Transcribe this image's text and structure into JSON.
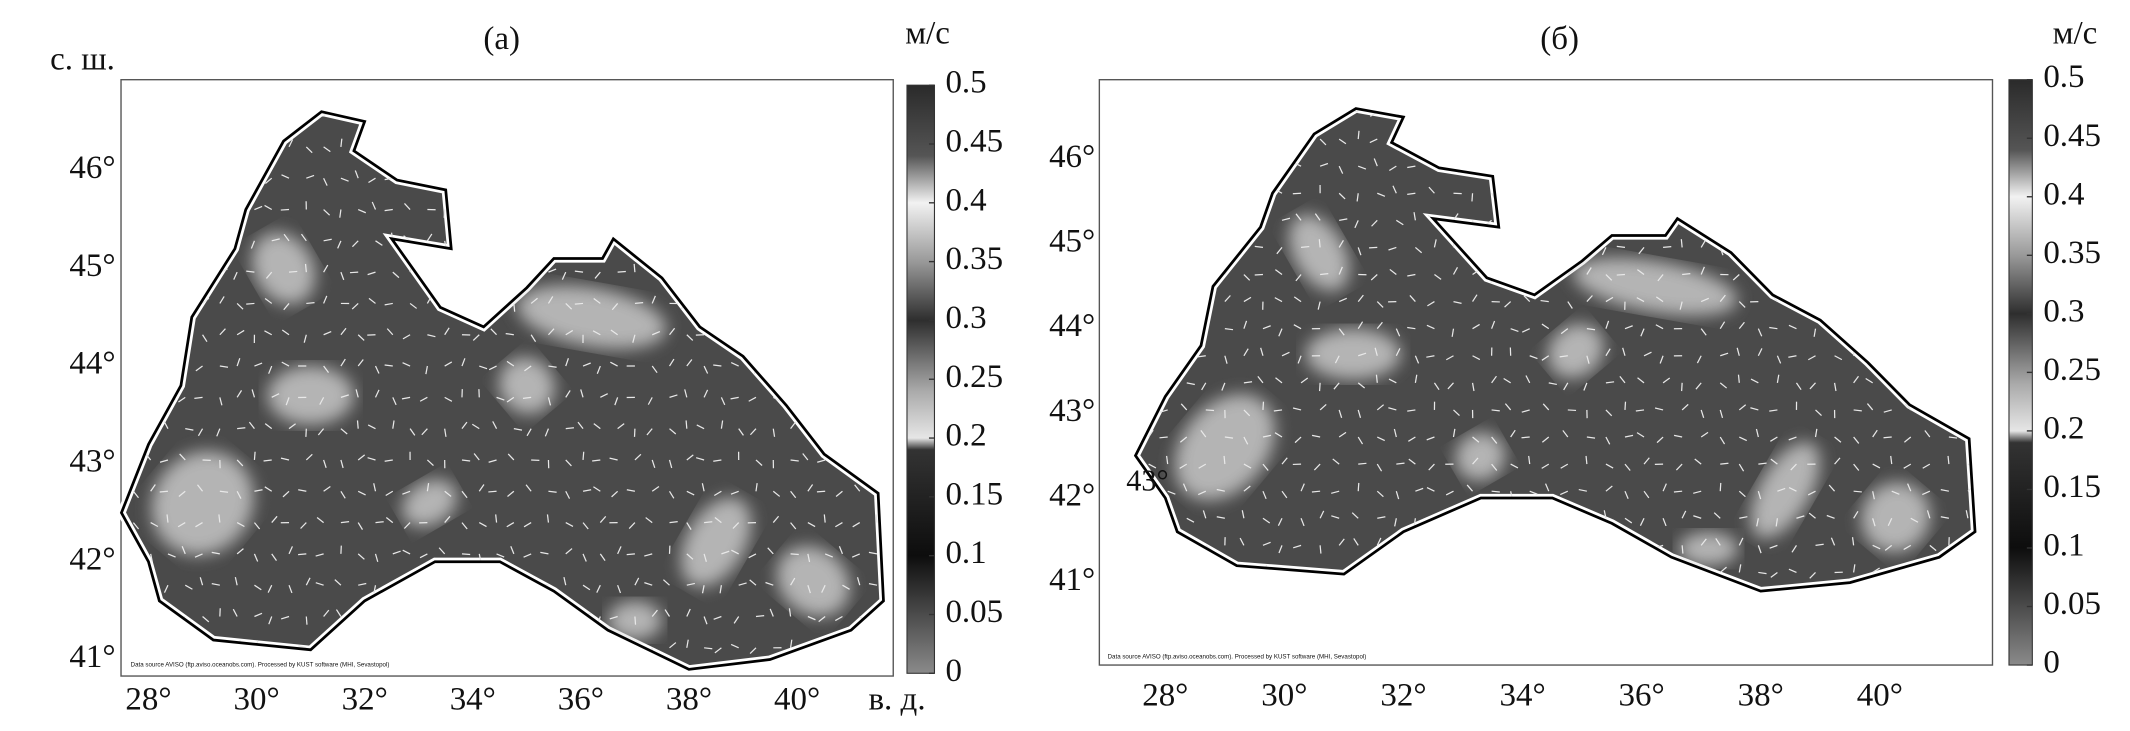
{
  "panels": [
    {
      "title": "(а)",
      "y_axis_label": "с. ш.",
      "x_axis_label": "в. д.",
      "colorbar_unit": "м/с",
      "lat_ticks": [
        {
          "value": 41,
          "label": "41°"
        },
        {
          "value": 42,
          "label": "42°"
        },
        {
          "value": 43,
          "label": "43°"
        },
        {
          "value": 44,
          "label": "44°"
        },
        {
          "value": 45,
          "label": "45°"
        },
        {
          "value": 46,
          "label": "46°"
        }
      ],
      "lon_ticks": [
        {
          "value": 28,
          "label": "28°"
        },
        {
          "value": 30,
          "label": "30°"
        },
        {
          "value": 32,
          "label": "32°"
        },
        {
          "value": 34,
          "label": "34°"
        },
        {
          "value": 36,
          "label": "36°"
        },
        {
          "value": 38,
          "label": "38°"
        },
        {
          "value": 40,
          "label": "40°"
        }
      ],
      "colorbar_ticks": [
        0,
        0.05,
        0.1,
        0.15,
        0.2,
        0.25,
        0.3,
        0.35,
        0.4,
        0.45,
        0.5
      ],
      "source_note": "Data source AVISO (ftp.aviso.oceanobs.com). Processed by KUST software (MHI, Sevastopol)"
    },
    {
      "title": "(б)",
      "colorbar_unit": "м/с",
      "lat_ticks": [
        {
          "value": 41,
          "label": "41°"
        },
        {
          "value": 42,
          "label": "42°"
        },
        {
          "value": 43,
          "label": "43°"
        },
        {
          "value": 44,
          "label": "44°"
        },
        {
          "value": 45,
          "label": "45°"
        },
        {
          "value": 46,
          "label": "46°"
        }
      ],
      "lon_ticks": [
        {
          "value": 28,
          "label": "28°"
        },
        {
          "value": 30,
          "label": "30°"
        },
        {
          "value": 32,
          "label": "32°"
        },
        {
          "value": 34,
          "label": "34°"
        },
        {
          "value": 36,
          "label": "36°"
        },
        {
          "value": 38,
          "label": "38°"
        },
        {
          "value": 40,
          "label": "40°"
        }
      ],
      "colorbar_ticks": [
        0,
        0.05,
        0.1,
        0.15,
        0.2,
        0.25,
        0.3,
        0.35,
        0.4,
        0.45,
        0.5
      ],
      "annotation": "43°",
      "source_note": "Data source AVISO (ftp.aviso.oceanobs.com). Processed by KUST software (MHI, Sevastopol)"
    }
  ]
}
